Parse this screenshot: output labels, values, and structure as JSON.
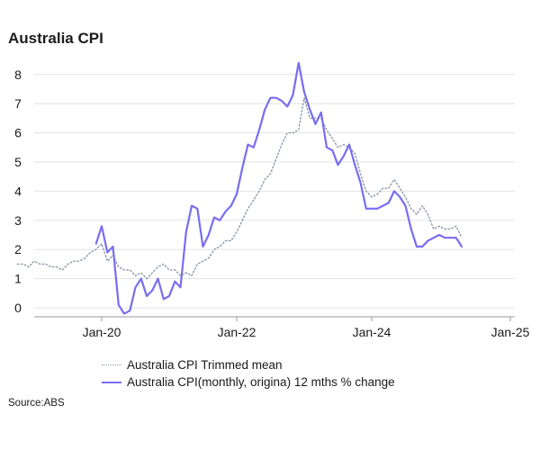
{
  "chart_data": {
    "type": "line",
    "title": "Australia CPI",
    "source": "Source:ABS",
    "ylim": [
      0,
      8
    ],
    "yticks": [
      "0",
      "1",
      "2",
      "3",
      "4",
      "5",
      "6",
      "7",
      "8"
    ],
    "xticks": [
      "Jan-20",
      "Jan-22",
      "Jan-24",
      "Jan-25"
    ],
    "grid": true,
    "legend_position": "bottom",
    "series": [
      {
        "name": "Australia CPI Trimmed mean",
        "style": "dotted",
        "color": "#8a9aa8",
        "points": [
          [
            "2018-10",
            1.5
          ],
          [
            "2018-11",
            1.5
          ],
          [
            "2018-12",
            1.4
          ],
          [
            "2019-01",
            1.6
          ],
          [
            "2019-02",
            1.5
          ],
          [
            "2019-03",
            1.5
          ],
          [
            "2019-04",
            1.4
          ],
          [
            "2019-05",
            1.4
          ],
          [
            "2019-06",
            1.3
          ],
          [
            "2019-07",
            1.5
          ],
          [
            "2019-08",
            1.6
          ],
          [
            "2019-09",
            1.6
          ],
          [
            "2019-10",
            1.7
          ],
          [
            "2019-11",
            1.9
          ],
          [
            "2019-12",
            2.0
          ],
          [
            "2020-01",
            2.2
          ],
          [
            "2020-02",
            1.6
          ],
          [
            "2020-03",
            1.8
          ],
          [
            "2020-04",
            1.4
          ],
          [
            "2020-05",
            1.3
          ],
          [
            "2020-06",
            1.3
          ],
          [
            "2020-07",
            1.1
          ],
          [
            "2020-08",
            1.2
          ],
          [
            "2020-09",
            1.0
          ],
          [
            "2020-10",
            1.2
          ],
          [
            "2020-11",
            1.4
          ],
          [
            "2020-12",
            1.5
          ],
          [
            "2021-01",
            1.3
          ],
          [
            "2021-02",
            1.3
          ],
          [
            "2021-03",
            1.1
          ],
          [
            "2021-04",
            1.2
          ],
          [
            "2021-05",
            1.1
          ],
          [
            "2021-06",
            1.5
          ],
          [
            "2021-07",
            1.6
          ],
          [
            "2021-08",
            1.7
          ],
          [
            "2021-09",
            2.0
          ],
          [
            "2021-10",
            2.1
          ],
          [
            "2021-11",
            2.3
          ],
          [
            "2021-12",
            2.3
          ],
          [
            "2022-01",
            2.6
          ],
          [
            "2022-02",
            3.0
          ],
          [
            "2022-03",
            3.4
          ],
          [
            "2022-04",
            3.7
          ],
          [
            "2022-05",
            4.0
          ],
          [
            "2022-06",
            4.4
          ],
          [
            "2022-07",
            4.6
          ],
          [
            "2022-08",
            5.1
          ],
          [
            "2022-09",
            5.6
          ],
          [
            "2022-10",
            6.0
          ],
          [
            "2022-11",
            6.0
          ],
          [
            "2022-12",
            6.1
          ],
          [
            "2023-01",
            7.2
          ],
          [
            "2023-02",
            6.5
          ],
          [
            "2023-03",
            6.5
          ],
          [
            "2023-04",
            6.5
          ],
          [
            "2023-05",
            6.1
          ],
          [
            "2023-06",
            5.8
          ],
          [
            "2023-07",
            5.5
          ],
          [
            "2023-08",
            5.6
          ],
          [
            "2023-09",
            5.5
          ],
          [
            "2023-10",
            5.3
          ],
          [
            "2023-11",
            4.6
          ],
          [
            "2023-12",
            4.0
          ],
          [
            "2024-01",
            3.8
          ],
          [
            "2024-02",
            3.9
          ],
          [
            "2024-03",
            4.1
          ],
          [
            "2024-04",
            4.1
          ],
          [
            "2024-05",
            4.4
          ],
          [
            "2024-06",
            4.1
          ],
          [
            "2024-07",
            3.8
          ],
          [
            "2024-08",
            3.4
          ],
          [
            "2024-09",
            3.2
          ],
          [
            "2024-10",
            3.5
          ],
          [
            "2024-11",
            3.2
          ],
          [
            "2024-12",
            2.7
          ],
          [
            "2025-01",
            2.8
          ],
          [
            "2025-02",
            2.7
          ],
          [
            "2025-03",
            2.7
          ],
          [
            "2025-04",
            2.8
          ],
          [
            "2025-05",
            2.4
          ]
        ]
      },
      {
        "name": "Australia CPI(monthly, origina) 12 mths % change",
        "style": "solid",
        "color": "#7a6cf0",
        "points": [
          [
            "2019-12",
            2.2
          ],
          [
            "2020-01",
            2.8
          ],
          [
            "2020-02",
            1.9
          ],
          [
            "2020-03",
            2.1
          ],
          [
            "2020-04",
            0.1
          ],
          [
            "2020-05",
            -0.2
          ],
          [
            "2020-06",
            -0.1
          ],
          [
            "2020-07",
            0.7
          ],
          [
            "2020-08",
            1.0
          ],
          [
            "2020-09",
            0.4
          ],
          [
            "2020-10",
            0.6
          ],
          [
            "2020-11",
            1.0
          ],
          [
            "2020-12",
            0.3
          ],
          [
            "2021-01",
            0.4
          ],
          [
            "2021-02",
            0.9
          ],
          [
            "2021-03",
            0.7
          ],
          [
            "2021-04",
            2.6
          ],
          [
            "2021-05",
            3.5
          ],
          [
            "2021-06",
            3.4
          ],
          [
            "2021-07",
            2.1
          ],
          [
            "2021-08",
            2.5
          ],
          [
            "2021-09",
            3.1
          ],
          [
            "2021-10",
            3.0
          ],
          [
            "2021-11",
            3.3
          ],
          [
            "2021-12",
            3.5
          ],
          [
            "2022-01",
            3.9
          ],
          [
            "2022-02",
            4.8
          ],
          [
            "2022-03",
            5.6
          ],
          [
            "2022-04",
            5.5
          ],
          [
            "2022-05",
            6.1
          ],
          [
            "2022-06",
            6.8
          ],
          [
            "2022-07",
            7.2
          ],
          [
            "2022-08",
            7.2
          ],
          [
            "2022-09",
            7.1
          ],
          [
            "2022-10",
            6.9
          ],
          [
            "2022-11",
            7.3
          ],
          [
            "2022-12",
            8.4
          ],
          [
            "2023-01",
            7.4
          ],
          [
            "2023-02",
            6.8
          ],
          [
            "2023-03",
            6.3
          ],
          [
            "2023-04",
            6.7
          ],
          [
            "2023-05",
            5.5
          ],
          [
            "2023-06",
            5.4
          ],
          [
            "2023-07",
            4.9
          ],
          [
            "2023-08",
            5.2
          ],
          [
            "2023-09",
            5.6
          ],
          [
            "2023-10",
            4.9
          ],
          [
            "2023-11",
            4.3
          ],
          [
            "2023-12",
            3.4
          ],
          [
            "2024-01",
            3.4
          ],
          [
            "2024-02",
            3.4
          ],
          [
            "2024-03",
            3.5
          ],
          [
            "2024-04",
            3.6
          ],
          [
            "2024-05",
            4.0
          ],
          [
            "2024-06",
            3.8
          ],
          [
            "2024-07",
            3.5
          ],
          [
            "2024-08",
            2.7
          ],
          [
            "2024-09",
            2.1
          ],
          [
            "2024-10",
            2.1
          ],
          [
            "2024-11",
            2.3
          ],
          [
            "2024-12",
            2.4
          ],
          [
            "2025-01",
            2.5
          ],
          [
            "2025-02",
            2.4
          ],
          [
            "2025-03",
            2.4
          ],
          [
            "2025-04",
            2.4
          ],
          [
            "2025-05",
            2.1
          ]
        ]
      }
    ]
  }
}
